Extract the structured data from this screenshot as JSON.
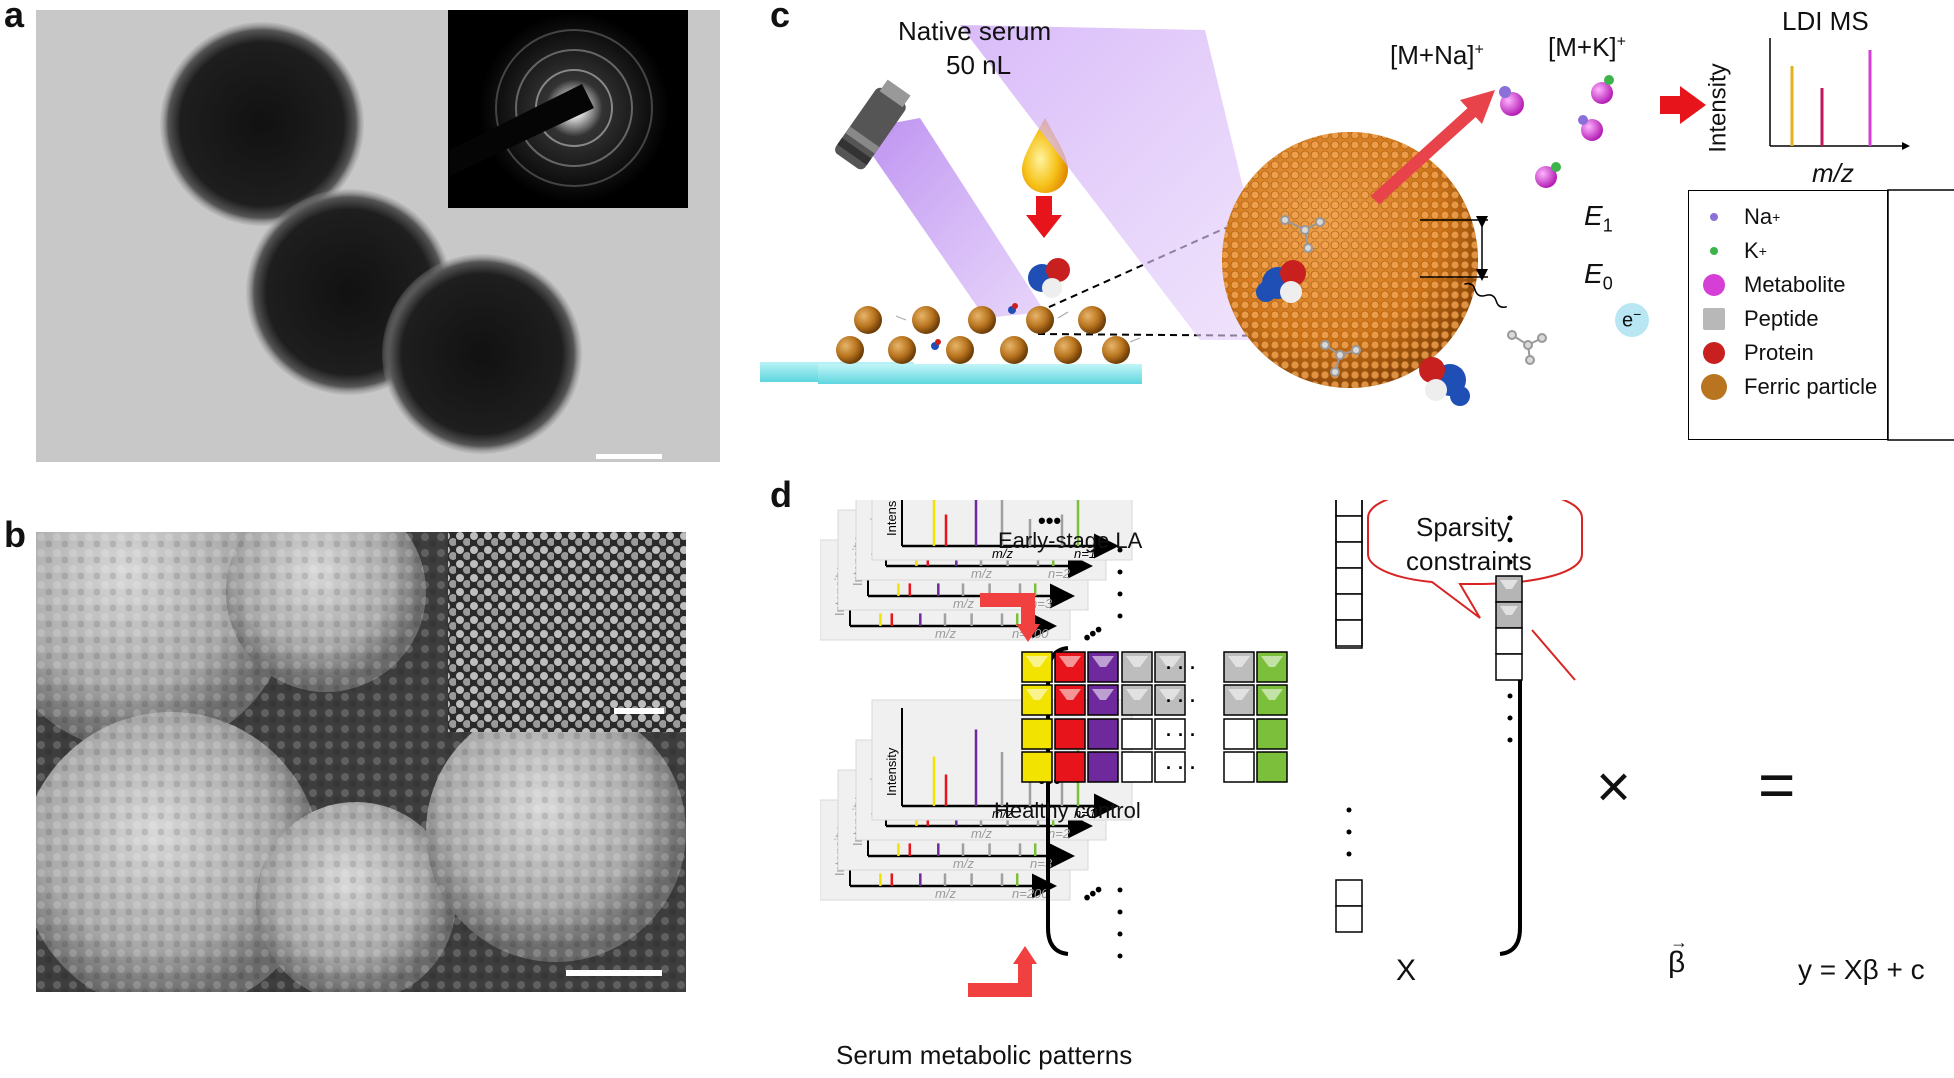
{
  "panels": {
    "a": "a",
    "b": "b",
    "c": "c",
    "d": "d"
  },
  "panel_c": {
    "native_serum_line1": "Native serum",
    "native_serum_line2": "50 nL",
    "ion_na": "[M+Na]",
    "ion_k": "[M+K]",
    "ion_sup": "+",
    "ldi_title": "LDI MS",
    "y_label": "Intensity",
    "x_label": "m/z",
    "e1": "E",
    "e1_sub": "1",
    "e0": "E",
    "e0_sub": "0",
    "electron": "e",
    "electron_sup": "−",
    "legend": [
      {
        "label": "Na",
        "sup": "+",
        "color": "#8a70d8"
      },
      {
        "label": "K",
        "sup": "+",
        "color": "#3cb44b"
      },
      {
        "label": "Metabolite",
        "sup": "",
        "color": "#d63fd6"
      },
      {
        "label": "Peptide",
        "sup": "",
        "color": "#b8b8b8"
      },
      {
        "label": "Protein",
        "sup": "",
        "color": "#c8201e"
      },
      {
        "label": "Ferric particle",
        "sup": "",
        "color": "#b8741e"
      }
    ]
  },
  "panel_d": {
    "group1_title": "Early-stage LA",
    "group2_title": "Healthy control",
    "y_label": "Intensity",
    "x_label": "m/z",
    "n_labels": [
      "n=1",
      "n=2",
      "n=3",
      "n=200"
    ],
    "ellipsis": "•••",
    "bubble_line1": "Sparsity",
    "bubble_line2": "constraints",
    "x_symbol": "X",
    "times": "×",
    "equals": "=",
    "beta": "β",
    "equation": "y = Xβ + c",
    "caption": "Serum metabolic patterns",
    "colors": {
      "yellow": "#f2e400",
      "red": "#e8141b",
      "purple": "#6e2a9c",
      "green": "#7bbf3a",
      "gray": "#a0a0a0"
    }
  }
}
